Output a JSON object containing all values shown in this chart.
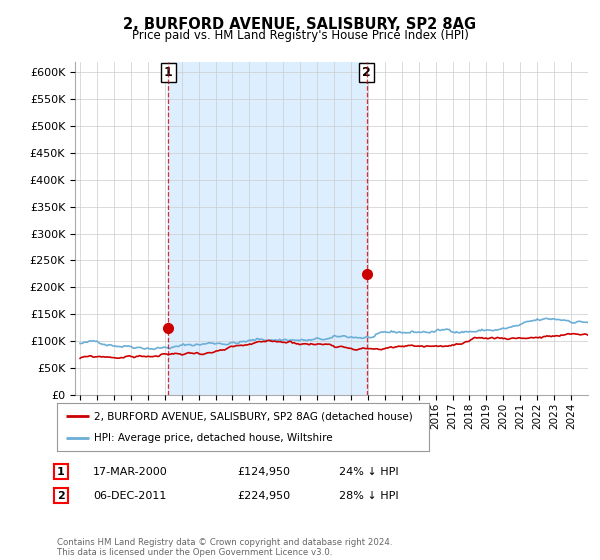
{
  "title": "2, BURFORD AVENUE, SALISBURY, SP2 8AG",
  "subtitle": "Price paid vs. HM Land Registry's House Price Index (HPI)",
  "ylabel_ticks": [
    "£0",
    "£50K",
    "£100K",
    "£150K",
    "£200K",
    "£250K",
    "£300K",
    "£350K",
    "£400K",
    "£450K",
    "£500K",
    "£550K",
    "£600K"
  ],
  "ylim": [
    0,
    620000
  ],
  "ytick_vals": [
    0,
    50000,
    100000,
    150000,
    200000,
    250000,
    300000,
    350000,
    400000,
    450000,
    500000,
    550000,
    600000
  ],
  "hpi_color": "#6baed6",
  "price_color": "#cc0000",
  "marker_color": "#cc0000",
  "vline_color": "#cc0000",
  "shade_color": "#ddeeff",
  "background_color": "#ffffff",
  "grid_color": "#cccccc",
  "legend_label_price": "2, BURFORD AVENUE, SALISBURY, SP2 8AG (detached house)",
  "legend_label_hpi": "HPI: Average price, detached house, Wiltshire",
  "annotation1_date": "17-MAR-2000",
  "annotation1_price": "£124,950",
  "annotation1_note": "24% ↓ HPI",
  "annotation2_date": "06-DEC-2011",
  "annotation2_price": "£224,950",
  "annotation2_note": "28% ↓ HPI",
  "footer": "Contains HM Land Registry data © Crown copyright and database right 2024.\nThis data is licensed under the Open Government Licence v3.0.",
  "sale1_x": 2000.21,
  "sale1_y": 124950,
  "sale2_x": 2011.92,
  "sale2_y": 224950,
  "vline1_x": 2000.21,
  "vline2_x": 2011.92,
  "xmin": 1994.7,
  "xmax": 2025.0
}
